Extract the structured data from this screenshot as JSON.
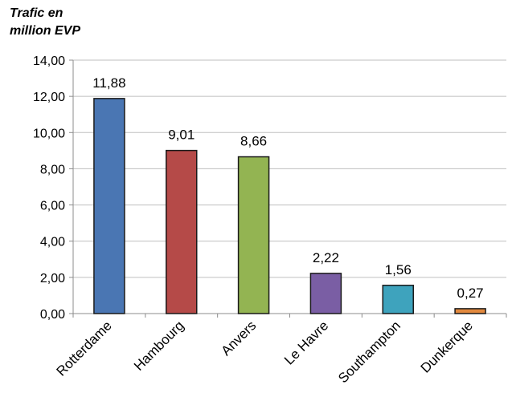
{
  "chart_data": {
    "type": "bar",
    "ylabel": "Trafic en\nmillion EVP",
    "xlabel": "",
    "categories": [
      "Rotterdame",
      "Hambourg",
      "Anvers",
      "Le Havre",
      "Southampton",
      "Dunkerque"
    ],
    "values": [
      11.88,
      9.01,
      8.66,
      2.22,
      1.56,
      0.27
    ],
    "value_labels": [
      "11,88",
      "9,01",
      "8,66",
      "2,22",
      "1,56",
      "0,27"
    ],
    "colors": [
      "#4a76b3",
      "#b54a48",
      "#93b452",
      "#7a5ea4",
      "#3ea3bd",
      "#e2893e"
    ],
    "ylim": [
      0,
      14
    ],
    "yticks": [
      0,
      2,
      4,
      6,
      8,
      10,
      12,
      14
    ],
    "ytick_labels": [
      "0,00",
      "2,00",
      "4,00",
      "6,00",
      "8,00",
      "10,00",
      "12,00",
      "14,00"
    ],
    "grid": true,
    "legend": "none"
  }
}
